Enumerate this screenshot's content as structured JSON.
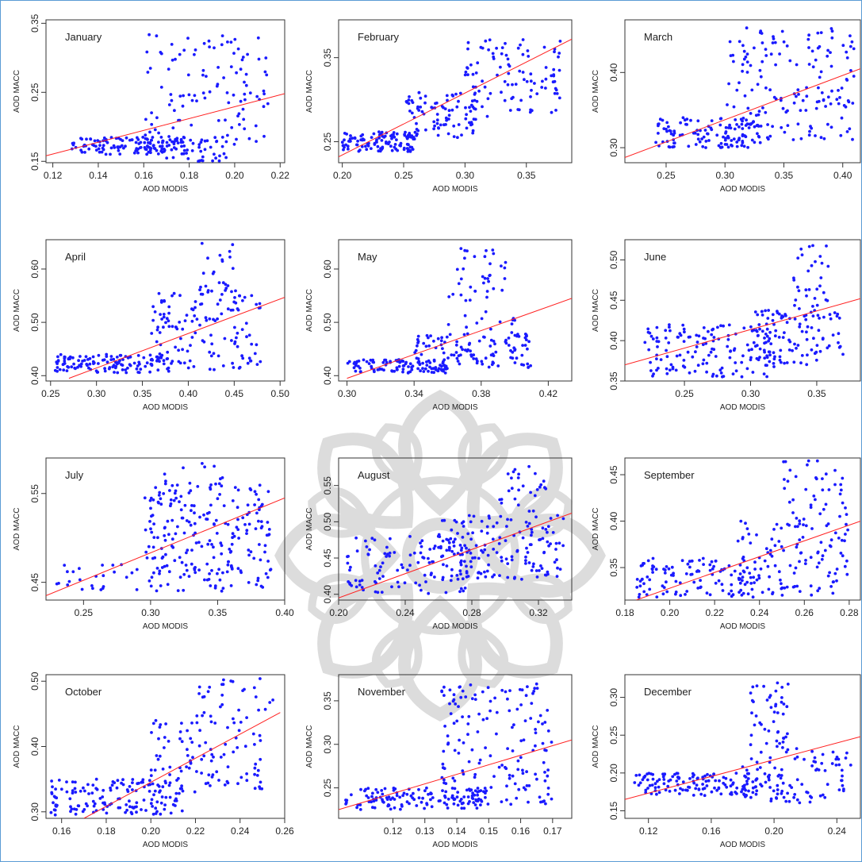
{
  "colors": {
    "points": "#1a1aff",
    "fit_line": "#ff2020",
    "axis": "#333333",
    "watermark": "#d6d6d6",
    "border": "#5b9bd5"
  },
  "watermark": {
    "icon": "flower-logo-watermark"
  },
  "chart_data": [
    {
      "type": "scatter",
      "title": "January",
      "xlabel": "AOD MODIS",
      "ylabel": "AOD MACC",
      "xlim": [
        0.117,
        0.222
      ],
      "ylim": [
        0.148,
        0.355
      ],
      "xticks": [
        0.12,
        0.14,
        0.16,
        0.18,
        0.2,
        0.22
      ],
      "xtick_labels": [
        "0.12",
        "0.14",
        "0.16",
        "0.18",
        "0.20",
        "0.22"
      ],
      "yticks": [
        0.15,
        0.25,
        0.35
      ],
      "ytick_labels": [
        "0.15",
        "0.25",
        "0.35"
      ],
      "fit_line": [
        [
          0.117,
          0.158
        ],
        [
          0.222,
          0.248
        ]
      ],
      "clusters": [
        {
          "x": [
            0.128,
            0.178
          ],
          "y": [
            0.16,
            0.185
          ],
          "n": 120
        },
        {
          "x": [
            0.16,
            0.215
          ],
          "y": [
            0.165,
            0.335
          ],
          "n": 120
        },
        {
          "x": [
            0.168,
            0.198
          ],
          "y": [
            0.15,
            0.185
          ],
          "n": 40
        }
      ]
    },
    {
      "type": "scatter",
      "title": "February",
      "xlabel": "AOD MODIS",
      "ylabel": "AOD MACC",
      "xlim": [
        0.197,
        0.387
      ],
      "ylim": [
        0.225,
        0.395
      ],
      "xticks": [
        0.2,
        0.25,
        0.3,
        0.35
      ],
      "xtick_labels": [
        "0.20",
        "0.25",
        "0.30",
        "0.35"
      ],
      "yticks": [
        0.25,
        0.35
      ],
      "ytick_labels": [
        "0.25",
        "0.35"
      ],
      "fit_line": [
        [
          0.197,
          0.232
        ],
        [
          0.387,
          0.372
        ]
      ],
      "clusters": [
        {
          "x": [
            0.2,
            0.26
          ],
          "y": [
            0.238,
            0.262
          ],
          "n": 110
        },
        {
          "x": [
            0.25,
            0.31
          ],
          "y": [
            0.255,
            0.31
          ],
          "n": 90
        },
        {
          "x": [
            0.3,
            0.38
          ],
          "y": [
            0.28,
            0.375
          ],
          "n": 100
        }
      ]
    },
    {
      "type": "scatter",
      "title": "March",
      "xlabel": "AOD MODIS",
      "ylabel": "AOD MACC",
      "xlim": [
        0.215,
        0.415
      ],
      "ylim": [
        0.28,
        0.47
      ],
      "xticks": [
        0.25,
        0.3,
        0.35,
        0.4
      ],
      "xtick_labels": [
        "0.25",
        "0.30",
        "0.35",
        "0.40"
      ],
      "yticks": [
        0.3,
        0.4
      ],
      "ytick_labels": [
        "0.30",
        "0.40"
      ],
      "fit_line": [
        [
          0.215,
          0.287
        ],
        [
          0.415,
          0.405
        ]
      ],
      "clusters": [
        {
          "x": [
            0.24,
            0.33
          ],
          "y": [
            0.3,
            0.34
          ],
          "n": 120
        },
        {
          "x": [
            0.3,
            0.41
          ],
          "y": [
            0.31,
            0.46
          ],
          "n": 160
        }
      ]
    },
    {
      "type": "scatter",
      "title": "April",
      "xlabel": "AOD MODIS",
      "ylabel": "AOD MACC",
      "xlim": [
        0.245,
        0.505
      ],
      "ylim": [
        0.39,
        0.655
      ],
      "xticks": [
        0.25,
        0.3,
        0.35,
        0.4,
        0.45,
        0.5
      ],
      "xtick_labels": [
        "0.25",
        "0.30",
        "0.35",
        "0.40",
        "0.45",
        "0.50"
      ],
      "yticks": [
        0.4,
        0.5,
        0.6
      ],
      "ytick_labels": [
        "0.40",
        "0.50",
        "0.60"
      ],
      "fit_line": [
        [
          0.27,
          0.395
        ],
        [
          0.505,
          0.547
        ]
      ],
      "clusters": [
        {
          "x": [
            0.255,
            0.38
          ],
          "y": [
            0.405,
            0.44
          ],
          "n": 130
        },
        {
          "x": [
            0.36,
            0.48
          ],
          "y": [
            0.41,
            0.56
          ],
          "n": 140
        },
        {
          "x": [
            0.41,
            0.45
          ],
          "y": [
            0.56,
            0.65
          ],
          "n": 20
        }
      ]
    },
    {
      "type": "scatter",
      "title": "May",
      "xlabel": "AOD MODIS",
      "ylabel": "AOD MACC",
      "xlim": [
        0.295,
        0.434
      ],
      "ylim": [
        0.39,
        0.655
      ],
      "xticks": [
        0.3,
        0.34,
        0.38,
        0.42
      ],
      "xtick_labels": [
        "0.30",
        "0.34",
        "0.38",
        "0.42"
      ],
      "yticks": [
        0.4,
        0.5,
        0.6
      ],
      "ytick_labels": [
        "0.40",
        "0.50",
        "0.60"
      ],
      "fit_line": [
        [
          0.3,
          0.395
        ],
        [
          0.434,
          0.545
        ]
      ],
      "clusters": [
        {
          "x": [
            0.3,
            0.36
          ],
          "y": [
            0.405,
            0.43
          ],
          "n": 110
        },
        {
          "x": [
            0.34,
            0.41
          ],
          "y": [
            0.415,
            0.48
          ],
          "n": 110
        },
        {
          "x": [
            0.36,
            0.4
          ],
          "y": [
            0.48,
            0.64
          ],
          "n": 50
        }
      ]
    },
    {
      "type": "scatter",
      "title": "June",
      "xlabel": "AOD MODIS",
      "ylabel": "AOD MACC",
      "xlim": [
        0.205,
        0.383
      ],
      "ylim": [
        0.35,
        0.525
      ],
      "xticks": [
        0.25,
        0.3,
        0.35
      ],
      "xtick_labels": [
        "0.25",
        "0.30",
        "0.35"
      ],
      "yticks": [
        0.35,
        0.4,
        0.45,
        0.5
      ],
      "ytick_labels": [
        "0.35",
        "0.40",
        "0.45",
        "0.50"
      ],
      "fit_line": [
        [
          0.205,
          0.37
        ],
        [
          0.383,
          0.452
        ]
      ],
      "clusters": [
        {
          "x": [
            0.22,
            0.32
          ],
          "y": [
            0.355,
            0.42
          ],
          "n": 140
        },
        {
          "x": [
            0.3,
            0.37
          ],
          "y": [
            0.37,
            0.44
          ],
          "n": 110
        },
        {
          "x": [
            0.33,
            0.36
          ],
          "y": [
            0.44,
            0.52
          ],
          "n": 30
        }
      ]
    },
    {
      "type": "scatter",
      "title": "July",
      "xlabel": "AOD MODIS",
      "ylabel": "AOD MACC",
      "xlim": [
        0.222,
        0.4
      ],
      "ylim": [
        0.43,
        0.59
      ],
      "xticks": [
        0.25,
        0.3,
        0.35,
        0.4
      ],
      "xtick_labels": [
        "0.25",
        "0.30",
        "0.35",
        "0.40"
      ],
      "yticks": [
        0.45,
        0.55
      ],
      "ytick_labels": [
        "0.45",
        "0.55"
      ],
      "fit_line": [
        [
          0.222,
          0.435
        ],
        [
          0.4,
          0.545
        ]
      ],
      "clusters": [
        {
          "x": [
            0.23,
            0.29
          ],
          "y": [
            0.44,
            0.47
          ],
          "n": 25
        },
        {
          "x": [
            0.295,
            0.39
          ],
          "y": [
            0.44,
            0.56
          ],
          "n": 230
        },
        {
          "x": [
            0.31,
            0.355
          ],
          "y": [
            0.56,
            0.585
          ],
          "n": 12
        }
      ]
    },
    {
      "type": "scatter",
      "title": "August",
      "xlabel": "AOD MODIS",
      "ylabel": "AOD MACC",
      "xlim": [
        0.2,
        0.34
      ],
      "ylim": [
        0.392,
        0.588
      ],
      "xticks": [
        0.2,
        0.24,
        0.28,
        0.32
      ],
      "xtick_labels": [
        "0.20",
        "0.24",
        "0.28",
        "0.32"
      ],
      "yticks": [
        0.4,
        0.45,
        0.5,
        0.55
      ],
      "ytick_labels": [
        "0.40",
        "0.45",
        "0.50",
        "0.55"
      ],
      "fit_line": [
        [
          0.2,
          0.395
        ],
        [
          0.34,
          0.512
        ]
      ],
      "clusters": [
        {
          "x": [
            0.205,
            0.28
          ],
          "y": [
            0.4,
            0.48
          ],
          "n": 110
        },
        {
          "x": [
            0.26,
            0.335
          ],
          "y": [
            0.42,
            0.51
          ],
          "n": 150
        },
        {
          "x": [
            0.295,
            0.325
          ],
          "y": [
            0.5,
            0.58
          ],
          "n": 30
        }
      ]
    },
    {
      "type": "scatter",
      "title": "September",
      "xlabel": "AOD MODIS",
      "ylabel": "AOD MACC",
      "xlim": [
        0.18,
        0.285
      ],
      "ylim": [
        0.315,
        0.468
      ],
      "xticks": [
        0.18,
        0.2,
        0.22,
        0.24,
        0.26,
        0.28
      ],
      "xtick_labels": [
        "0.18",
        "0.20",
        "0.22",
        "0.24",
        "0.26",
        "0.28"
      ],
      "yticks": [
        0.35,
        0.4,
        0.45
      ],
      "ytick_labels": [
        "0.35",
        "0.40",
        "0.45"
      ],
      "fit_line": [
        [
          0.185,
          0.315
        ],
        [
          0.285,
          0.4
        ]
      ],
      "clusters": [
        {
          "x": [
            0.185,
            0.24
          ],
          "y": [
            0.318,
            0.36
          ],
          "n": 120
        },
        {
          "x": [
            0.23,
            0.28
          ],
          "y": [
            0.32,
            0.4
          ],
          "n": 110
        },
        {
          "x": [
            0.25,
            0.28
          ],
          "y": [
            0.4,
            0.465
          ],
          "n": 40
        }
      ]
    },
    {
      "type": "scatter",
      "title": "October",
      "xlabel": "AOD MODIS",
      "ylabel": "AOD MACC",
      "xlim": [
        0.153,
        0.26
      ],
      "ylim": [
        0.29,
        0.51
      ],
      "xticks": [
        0.16,
        0.18,
        0.2,
        0.22,
        0.24,
        0.26
      ],
      "xtick_labels": [
        "0.16",
        "0.18",
        "0.20",
        "0.22",
        "0.24",
        "0.26"
      ],
      "yticks": [
        0.3,
        0.4,
        0.5
      ],
      "ytick_labels": [
        "0.30",
        "0.40",
        "0.50"
      ],
      "fit_line": [
        [
          0.17,
          0.29
        ],
        [
          0.258,
          0.452
        ]
      ],
      "clusters": [
        {
          "x": [
            0.155,
            0.215
          ],
          "y": [
            0.295,
            0.35
          ],
          "n": 150
        },
        {
          "x": [
            0.2,
            0.25
          ],
          "y": [
            0.33,
            0.44
          ],
          "n": 100
        },
        {
          "x": [
            0.22,
            0.255
          ],
          "y": [
            0.44,
            0.505
          ],
          "n": 30
        }
      ]
    },
    {
      "type": "scatter",
      "title": "November",
      "xlabel": "AOD MODIS",
      "ylabel": "AOD MACC",
      "xlim": [
        0.103,
        0.176
      ],
      "ylim": [
        0.215,
        0.38
      ],
      "xticks": [
        0.12,
        0.13,
        0.14,
        0.15,
        0.16,
        0.17
      ],
      "xtick_labels": [
        "0.12",
        "0.13",
        "0.14",
        "0.15",
        "0.16",
        "0.17"
      ],
      "yticks": [
        0.25,
        0.3,
        0.35
      ],
      "ytick_labels": [
        "0.25",
        "0.30",
        "0.35"
      ],
      "fit_line": [
        [
          0.103,
          0.225
        ],
        [
          0.176,
          0.305
        ]
      ],
      "clusters": [
        {
          "x": [
            0.105,
            0.15
          ],
          "y": [
            0.225,
            0.25
          ],
          "n": 130
        },
        {
          "x": [
            0.135,
            0.17
          ],
          "y": [
            0.23,
            0.37
          ],
          "n": 160
        }
      ]
    },
    {
      "type": "scatter",
      "title": "December",
      "xlabel": "AOD MODIS",
      "ylabel": "AOD MACC",
      "xlim": [
        0.105,
        0.255
      ],
      "ylim": [
        0.14,
        0.33
      ],
      "xticks": [
        0.12,
        0.16,
        0.2,
        0.24
      ],
      "xtick_labels": [
        "0.12",
        "0.16",
        "0.20",
        "0.24"
      ],
      "yticks": [
        0.15,
        0.2,
        0.25,
        0.3
      ],
      "ytick_labels": [
        "0.15",
        "0.20",
        "0.25",
        "0.30"
      ],
      "fit_line": [
        [
          0.105,
          0.165
        ],
        [
          0.255,
          0.248
        ]
      ],
      "clusters": [
        {
          "x": [
            0.11,
            0.19
          ],
          "y": [
            0.17,
            0.2
          ],
          "n": 130
        },
        {
          "x": [
            0.18,
            0.25
          ],
          "y": [
            0.16,
            0.24
          ],
          "n": 110
        },
        {
          "x": [
            0.185,
            0.21
          ],
          "y": [
            0.24,
            0.32
          ],
          "n": 40
        }
      ]
    }
  ]
}
